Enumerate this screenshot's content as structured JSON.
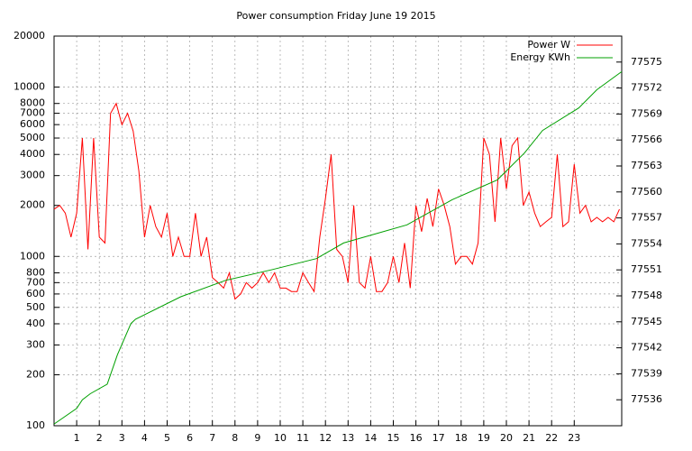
{
  "chart_data": {
    "type": "line",
    "title": "Power consumption Friday June 19 2015",
    "log_y": true,
    "grid": true,
    "legend": "top-right",
    "xlim": [
      0,
      25.1
    ],
    "xticks": [
      1,
      2,
      3,
      4,
      5,
      6,
      7,
      8,
      9,
      10,
      11,
      12,
      13,
      14,
      15,
      16,
      17,
      18,
      19,
      20,
      21,
      22,
      23
    ],
    "ylim": [
      100,
      20000
    ],
    "yticks": [
      100,
      200,
      300,
      400,
      500,
      600,
      700,
      800,
      1000,
      2000,
      3000,
      4000,
      5000,
      6000,
      7000,
      8000,
      10000,
      20000
    ],
    "y2lim": [
      77533,
      77578
    ],
    "y2ticks": [
      77536,
      77539,
      77542,
      77545,
      77548,
      77551,
      77554,
      77557,
      77560,
      77563,
      77566,
      77569,
      77572,
      77575
    ],
    "series": [
      {
        "name": "Power W",
        "color": "#ff0000",
        "x": [
          0,
          0.25,
          0.5,
          0.75,
          1,
          1.25,
          1.5,
          1.75,
          2,
          2.25,
          2.5,
          2.75,
          3,
          3.25,
          3.5,
          3.75,
          4,
          4.25,
          4.5,
          4.75,
          5,
          5.25,
          5.5,
          5.75,
          6,
          6.25,
          6.5,
          6.75,
          7,
          7.25,
          7.5,
          7.75,
          8,
          8.25,
          8.5,
          8.75,
          9,
          9.25,
          9.5,
          9.75,
          10,
          10.25,
          10.5,
          10.75,
          11,
          11.25,
          11.5,
          11.75,
          12,
          12.25,
          12.5,
          12.75,
          13,
          13.25,
          13.5,
          13.75,
          14,
          14.25,
          14.5,
          14.75,
          15,
          15.25,
          15.5,
          15.75,
          16,
          16.25,
          16.5,
          16.75,
          17,
          17.25,
          17.5,
          17.75,
          18,
          18.25,
          18.5,
          18.75,
          19,
          19.25,
          19.5,
          19.75,
          20,
          20.25,
          20.5,
          20.75,
          21,
          21.25,
          21.5,
          21.75,
          22,
          22.25,
          22.5,
          22.75,
          23,
          23.25,
          23.5,
          23.75,
          24,
          24.25,
          24.5,
          24.75,
          25
        ],
        "values": [
          1900,
          2000,
          1800,
          1300,
          1800,
          5000,
          1100,
          5000,
          1300,
          1200,
          7000,
          8000,
          6000,
          7000,
          5500,
          3200,
          1300,
          2000,
          1500,
          1300,
          1800,
          1000,
          1300,
          1000,
          1000,
          1800,
          1000,
          1300,
          750,
          700,
          650,
          800,
          560,
          600,
          700,
          650,
          700,
          800,
          700,
          800,
          650,
          650,
          620,
          620,
          800,
          700,
          620,
          1300,
          2200,
          4000,
          1100,
          1000,
          700,
          2000,
          700,
          650,
          1000,
          620,
          620,
          700,
          1000,
          700,
          1200,
          650,
          2000,
          1400,
          2200,
          1500,
          2500,
          2000,
          1500,
          900,
          1000,
          1000,
          900,
          1200,
          5000,
          4000,
          1600,
          5000,
          2500,
          4500,
          5000,
          2000,
          2400,
          1800,
          1500,
          1600,
          1700,
          4000,
          1500,
          1600,
          3500,
          1800,
          2000,
          1600,
          1700,
          1600,
          1700,
          1600,
          1900
        ]
      },
      {
        "name": "Energy KWh",
        "color": "#00a000",
        "axis": "y2",
        "x": [
          0,
          1,
          1.25,
          1.6,
          2.35,
          2.8,
          3.4,
          3.6,
          5.6,
          7.6,
          9.6,
          11.6,
          12.8,
          15.6,
          17.6,
          19.6,
          20.8,
          21.6,
          23.2,
          24,
          25.1
        ],
        "values": [
          77533.2,
          77535,
          77536,
          77536.7,
          77537.8,
          77541.2,
          77544.8,
          77545.3,
          77547.9,
          77549.8,
          77551,
          77552.3,
          77554.1,
          77556.2,
          77559.1,
          77561.4,
          77564.5,
          77567.1,
          77569.7,
          77571.8,
          77573.9
        ]
      }
    ]
  }
}
